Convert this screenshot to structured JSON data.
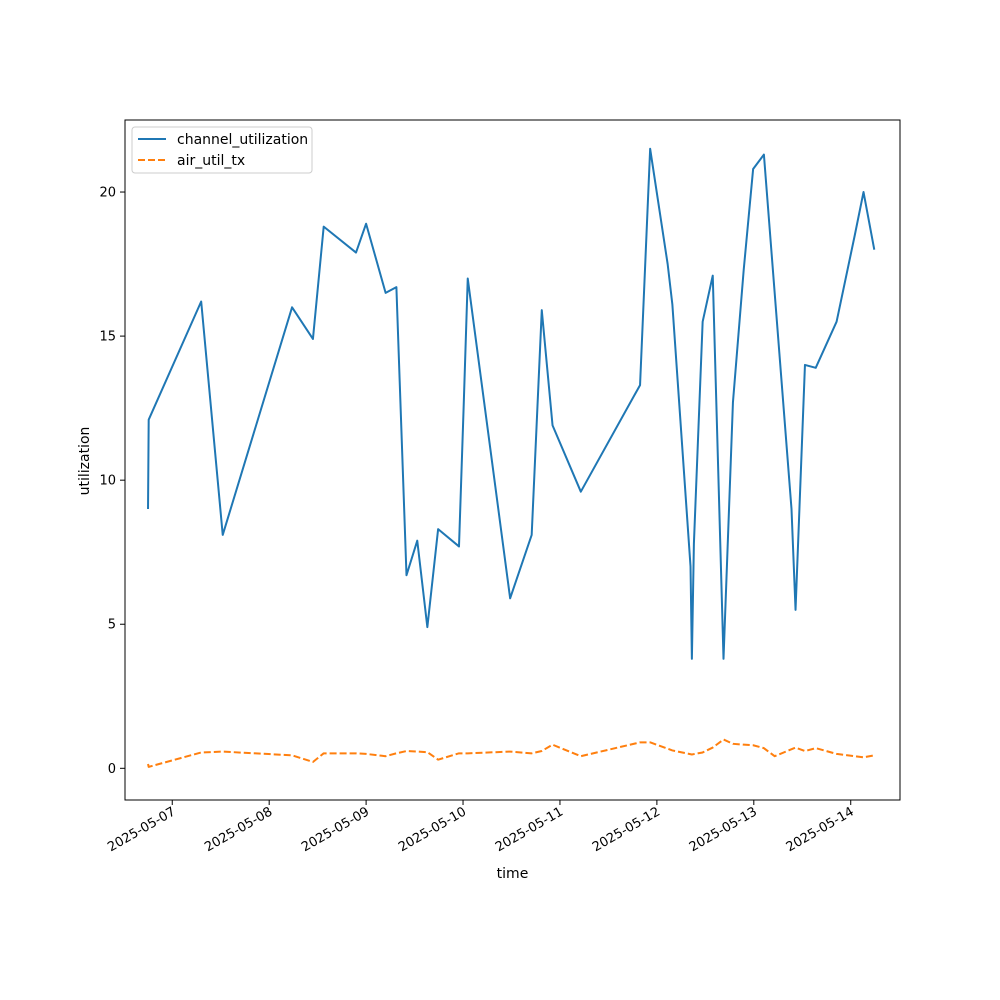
{
  "chart_data": {
    "type": "line",
    "title": "",
    "xlabel": "time",
    "ylabel": "utilization",
    "xlim": [
      "2025-05-06 12:18",
      "2025-05-14 12:12"
    ],
    "ylim": [
      -1.1,
      22.5
    ],
    "grid": false,
    "legend": "upper-left",
    "x_ticks": [
      "2025-05-07",
      "2025-05-08",
      "2025-05-09",
      "2025-05-10",
      "2025-05-11",
      "2025-05-12",
      "2025-05-13",
      "2025-05-14"
    ],
    "y_ticks": [
      0,
      5,
      10,
      15,
      20
    ],
    "series": [
      {
        "name": "channel_utilization",
        "color": "#1f77b4",
        "style": "solid",
        "points": [
          [
            "2025-05-06 18:00",
            9.0
          ],
          [
            "2025-05-06 18:10",
            12.1
          ],
          [
            "2025-05-07 07:10",
            16.2
          ],
          [
            "2025-05-07 12:30",
            8.1
          ],
          [
            "2025-05-08 05:40",
            16.0
          ],
          [
            "2025-05-08 10:50",
            14.9
          ],
          [
            "2025-05-08 13:30",
            18.8
          ],
          [
            "2025-05-08 21:30",
            17.9
          ],
          [
            "2025-05-09 00:00",
            18.9
          ],
          [
            "2025-05-09 04:50",
            16.5
          ],
          [
            "2025-05-09 07:30",
            16.7
          ],
          [
            "2025-05-09 10:00",
            6.7
          ],
          [
            "2025-05-09 12:40",
            7.9
          ],
          [
            "2025-05-09 15:10",
            4.9
          ],
          [
            "2025-05-09 17:50",
            8.3
          ],
          [
            "2025-05-09 23:00",
            7.7
          ],
          [
            "2025-05-10 00:10",
            12.6
          ],
          [
            "2025-05-10 01:10",
            17.0
          ],
          [
            "2025-05-10 11:40",
            5.9
          ],
          [
            "2025-05-10 17:00",
            8.1
          ],
          [
            "2025-05-10 19:30",
            15.9
          ],
          [
            "2025-05-10 22:10",
            11.9
          ],
          [
            "2025-05-11 05:10",
            9.6
          ],
          [
            "2025-05-11 19:50",
            13.3
          ],
          [
            "2025-05-11 22:20",
            21.5
          ],
          [
            "2025-05-12 02:40",
            17.5
          ],
          [
            "2025-05-12 03:50",
            16.1
          ],
          [
            "2025-05-12 08:20",
            7.0
          ],
          [
            "2025-05-12 08:40",
            3.8
          ],
          [
            "2025-05-12 09:10",
            7.8
          ],
          [
            "2025-05-12 11:20",
            15.5
          ],
          [
            "2025-05-12 13:50",
            17.1
          ],
          [
            "2025-05-12 16:30",
            3.8
          ],
          [
            "2025-05-12 18:50",
            12.7
          ],
          [
            "2025-05-12 21:30",
            17.3
          ],
          [
            "2025-05-12 23:50",
            20.8
          ],
          [
            "2025-05-13 02:30",
            21.3
          ],
          [
            "2025-05-13 09:20",
            9.0
          ],
          [
            "2025-05-13 10:20",
            5.5
          ],
          [
            "2025-05-13 12:40",
            14.0
          ],
          [
            "2025-05-13 15:20",
            13.9
          ],
          [
            "2025-05-13 20:30",
            15.5
          ],
          [
            "2025-05-14 01:00",
            18.5
          ],
          [
            "2025-05-14 03:10",
            20.0
          ],
          [
            "2025-05-14 05:50",
            18.0
          ]
        ]
      },
      {
        "name": "air_util_tx",
        "color": "#ff7f0e",
        "style": "dashed",
        "points": [
          [
            "2025-05-06 18:00",
            0.15
          ],
          [
            "2025-05-06 18:10",
            0.05
          ],
          [
            "2025-05-07 07:10",
            0.55
          ],
          [
            "2025-05-07 12:30",
            0.58
          ],
          [
            "2025-05-08 05:40",
            0.45
          ],
          [
            "2025-05-08 10:50",
            0.22
          ],
          [
            "2025-05-08 13:30",
            0.52
          ],
          [
            "2025-05-08 21:30",
            0.52
          ],
          [
            "2025-05-09 00:00",
            0.5
          ],
          [
            "2025-05-09 04:50",
            0.42
          ],
          [
            "2025-05-09 07:30",
            0.52
          ],
          [
            "2025-05-09 10:00",
            0.6
          ],
          [
            "2025-05-09 12:40",
            0.58
          ],
          [
            "2025-05-09 15:10",
            0.56
          ],
          [
            "2025-05-09 17:50",
            0.3
          ],
          [
            "2025-05-09 23:00",
            0.52
          ],
          [
            "2025-05-10 01:10",
            0.52
          ],
          [
            "2025-05-10 11:40",
            0.58
          ],
          [
            "2025-05-10 17:00",
            0.52
          ],
          [
            "2025-05-10 19:30",
            0.6
          ],
          [
            "2025-05-10 22:10",
            0.82
          ],
          [
            "2025-05-11 05:10",
            0.42
          ],
          [
            "2025-05-11 19:50",
            0.9
          ],
          [
            "2025-05-11 22:20",
            0.9
          ],
          [
            "2025-05-12 03:50",
            0.62
          ],
          [
            "2025-05-12 08:40",
            0.48
          ],
          [
            "2025-05-12 11:20",
            0.55
          ],
          [
            "2025-05-12 13:50",
            0.72
          ],
          [
            "2025-05-12 16:30",
            1.0
          ],
          [
            "2025-05-12 18:50",
            0.85
          ],
          [
            "2025-05-12 21:30",
            0.82
          ],
          [
            "2025-05-12 23:50",
            0.8
          ],
          [
            "2025-05-13 02:30",
            0.7
          ],
          [
            "2025-05-13 05:10",
            0.42
          ],
          [
            "2025-05-13 10:20",
            0.72
          ],
          [
            "2025-05-13 12:40",
            0.6
          ],
          [
            "2025-05-13 15:20",
            0.7
          ],
          [
            "2025-05-13 20:30",
            0.5
          ],
          [
            "2025-05-14 01:00",
            0.42
          ],
          [
            "2025-05-14 03:10",
            0.38
          ],
          [
            "2025-05-14 05:50",
            0.45
          ]
        ]
      }
    ]
  }
}
